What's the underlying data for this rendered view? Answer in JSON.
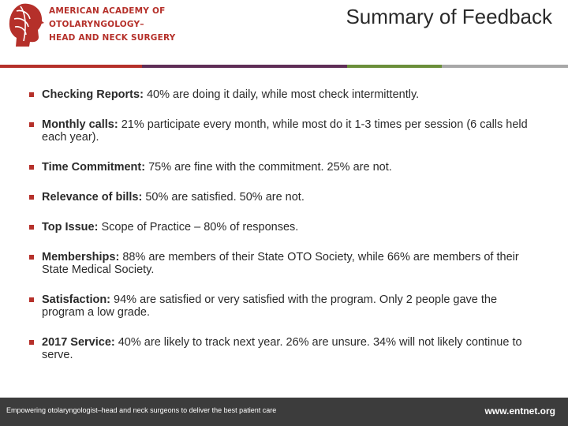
{
  "header": {
    "logo_lines": [
      "AMERICAN ACADEMY OF",
      "OTOLARYNGOLOGY–",
      "HEAD AND NECK SURGERY"
    ],
    "title": "Summary of Feedback"
  },
  "colors": {
    "accent": "#b5302a",
    "rule_segments": [
      "#b5302a",
      "#5f2e57",
      "#6b8f3a",
      "#a8a8a8"
    ],
    "footer_bg": "#3c3c3c"
  },
  "bullets": [
    {
      "label": "Checking Reports:",
      "text": " 40% are doing it daily, while most check intermittently."
    },
    {
      "label": "Monthly calls:",
      "text": " 21% participate every month, while most do it 1-3 times per session (6 calls held each year)."
    },
    {
      "label": "Time Commitment:",
      "text": " 75% are fine with the commitment. 25% are not."
    },
    {
      "label": "Relevance of bills:",
      "text": " 50% are satisfied. 50% are not."
    },
    {
      "label": "Top Issue:",
      "text": " Scope of Practice – 80% of responses."
    },
    {
      "label": "Memberships:",
      "text": " 88% are members of their State OTO Society, while 66% are members of their State Medical Society."
    },
    {
      "label": "Satisfaction:",
      "text": " 94% are satisfied or very satisfied with the program. Only 2 people gave the program a low grade."
    },
    {
      "label": "2017 Service:",
      "text": " 40% are likely to track next year. 26% are unsure. 34% will not likely continue to serve."
    }
  ],
  "footer": {
    "tagline": "Empowering otolaryngologist–head and neck surgeons to deliver the best patient care",
    "website": "www.entnet.org"
  }
}
